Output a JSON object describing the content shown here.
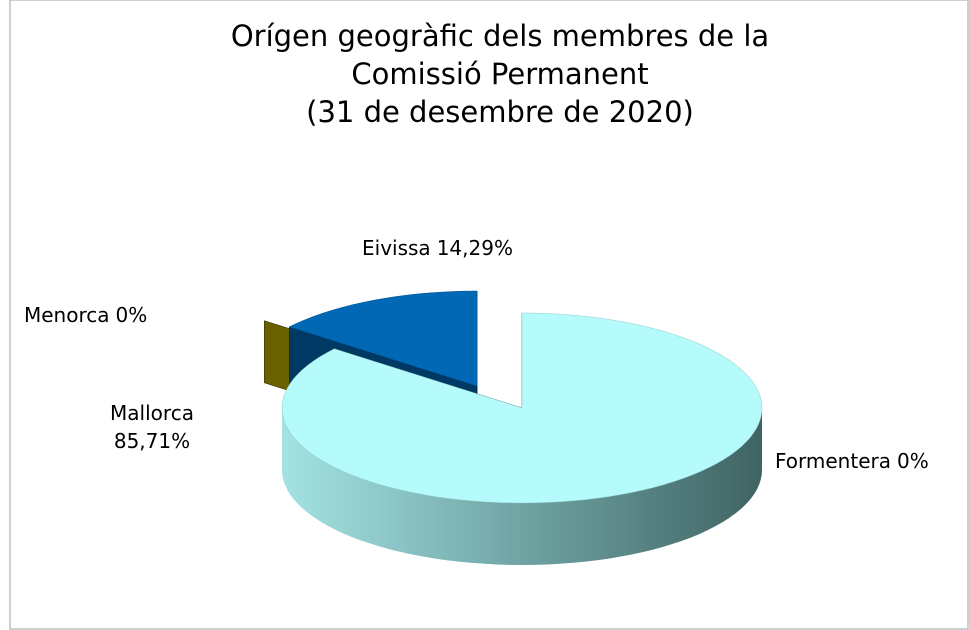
{
  "chart_data": {
    "type": "pie3d",
    "title": [
      "Orígen geogràfic dels membres de la",
      "Comissió Permanent",
      "(31 de desembre de 2020)"
    ],
    "categories": [
      "Mallorca",
      "Formentera",
      "Menorca",
      "Eivissa"
    ],
    "values": [
      85.71,
      0,
      0,
      14.29
    ],
    "value_labels": [
      "85,71%",
      "0%",
      "0%",
      "14,29%"
    ],
    "colors": [
      "#b5fbfb",
      "#4aa89a",
      "#7c7200",
      "#0068b5"
    ]
  }
}
